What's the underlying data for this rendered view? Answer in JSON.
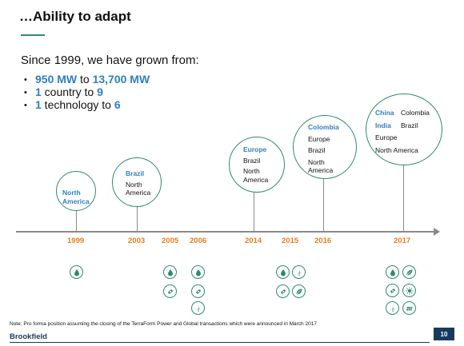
{
  "title": "…Ability to adapt",
  "intro": "Since 1999, we have grown from:",
  "bullets": [
    {
      "bullet": "•",
      "from": "950 MW",
      "mid": " to ",
      "to": "13,700 MW"
    },
    {
      "bullet": "•",
      "from": "1",
      "mid": " country to ",
      "to": "9"
    },
    {
      "bullet": "•",
      "from": "1",
      "mid": " technology to ",
      "to": "6"
    }
  ],
  "milestones": [
    {
      "year": "1999",
      "countries": [
        {
          "text": "North",
          "highlight": true
        },
        {
          "text": "America",
          "highlight": true
        }
      ]
    },
    {
      "year": "2003",
      "countries": [
        {
          "text": "Brazil",
          "highlight": true
        },
        {
          "text": "North",
          "highlight": false
        },
        {
          "text": "America",
          "highlight": false
        }
      ]
    },
    {
      "year": "2014",
      "countries": [
        {
          "text": "Europe",
          "highlight": true
        },
        {
          "text": "Brazil",
          "highlight": false
        },
        {
          "text": "North",
          "highlight": false
        },
        {
          "text": "America",
          "highlight": false
        }
      ]
    },
    {
      "year": "2016",
      "countries": [
        {
          "text": "Colombia",
          "highlight": true
        },
        {
          "text": "Europe",
          "highlight": false
        },
        {
          "text": "Brazil",
          "highlight": false
        },
        {
          "text": "North",
          "highlight": false
        },
        {
          "text": "America",
          "highlight": false
        }
      ]
    },
    {
      "year": "2017",
      "countries": [
        {
          "text": "China",
          "highlight": true
        },
        {
          "text": "Colombia",
          "highlight": false
        },
        {
          "text": "India",
          "highlight": true
        },
        {
          "text": "Brazil",
          "highlight": false
        },
        {
          "text": "Europe",
          "highlight": false
        },
        {
          "text": "North America",
          "highlight": false
        }
      ]
    }
  ],
  "years": [
    "1999",
    "2003",
    "2005",
    "2006",
    "2014",
    "2015",
    "2016",
    "2017"
  ],
  "technology_icons": {
    "1999": [
      "hydro-icon"
    ],
    "2005": [
      "hydro-icon",
      "wind-icon"
    ],
    "2006": [
      "hydro-icon",
      "wind-icon",
      "turbine-icon"
    ],
    "2015": [
      "hydro-icon",
      "turbine-icon",
      "wind-icon",
      "leaf-icon"
    ],
    "2017": [
      "hydro-icon",
      "turbine-icon",
      "wind-icon",
      "sun-icon",
      "solar-panel-icon",
      "leaf-icon"
    ]
  },
  "colors": {
    "accent_green": "#2e8b6e",
    "accent_blue": "#2f7fc1",
    "year_orange": "#e87d1e",
    "brand_navy": "#163b5e"
  },
  "footnote": "Note: Pro forma position assuming the closing of the TerraForm Power and Global transactions which were announced in March 2017",
  "brand": "Brookfield",
  "page_number": "10"
}
